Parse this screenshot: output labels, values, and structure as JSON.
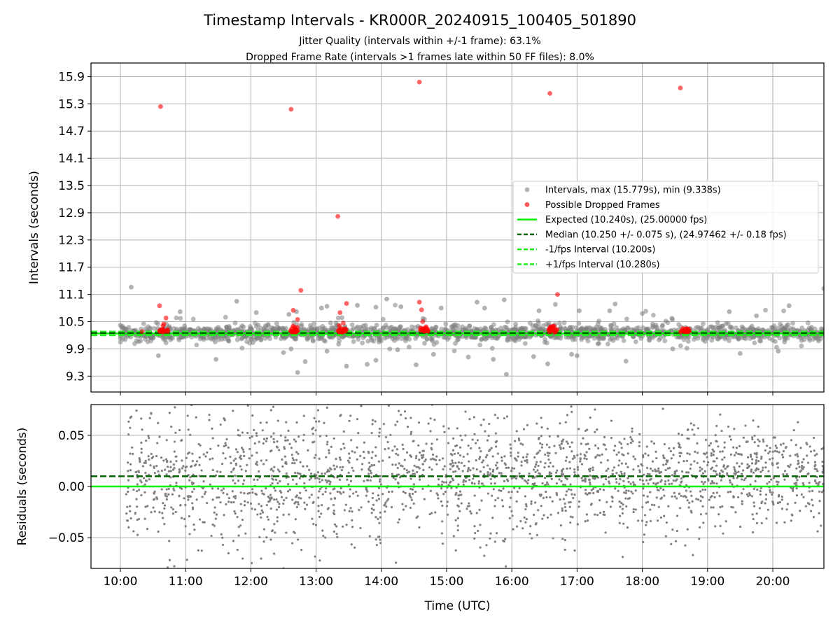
{
  "title": "Timestamp Intervals - KR000R_20240915_100405_501890",
  "subtitle_1": "Jitter Quality (intervals within +/-1 frame): 63.1%",
  "subtitle_2": "Dropped Frame Rate (intervals >1 frames late within 50 FF files): 8.0%",
  "colors": {
    "intervals": "#808080",
    "dropped": "#ff0000",
    "expected": "#00ee00",
    "median": "#006400",
    "fps_bounds": "#22ee22",
    "grid": "#b0b0b0"
  },
  "chart_data": [
    {
      "type": "scatter",
      "panel": "top",
      "ylabel": "Intervals (seconds)",
      "xlim": [
        "09:33",
        "20:47"
      ],
      "ylim": [
        8.95,
        16.2
      ],
      "yticks": [
        "9.3",
        "9.9",
        "10.5",
        "11.1",
        "11.7",
        "12.3",
        "12.9",
        "13.5",
        "14.1",
        "14.7",
        "15.3",
        "15.9"
      ],
      "grid": true,
      "legend_position": "center-right",
      "legend": [
        "Intervals, max (15.779s), min (9.338s)",
        "Possible Dropped Frames",
        "Expected (10.240s), (25.00000 fps)",
        "Median (10.250 +/- 0.075 s), (24.97462 +/- 0.18 fps)",
        "-1/fps Interval (10.200s)",
        "+1/fps Interval (10.280s)"
      ],
      "reference_lines": {
        "expected": 10.24,
        "median": 10.25,
        "minus_1_fps": 10.2,
        "plus_1_fps": 10.28
      },
      "series": [
        {
          "name": "Intervals, max (15.779s), min (9.338s)",
          "style": "gray scatter",
          "points": [
            [
              "10:10",
              11.26
            ],
            [
              "10:55",
              10.72
            ],
            [
              "11:47",
              10.95
            ],
            [
              "12:05",
              10.7
            ],
            [
              "12:35",
              10.66
            ],
            [
              "12:42",
              10.72
            ],
            [
              "13:05",
              10.8
            ],
            [
              "13:10",
              10.84
            ],
            [
              "13:38",
              10.86
            ],
            [
              "13:55",
              10.82
            ],
            [
              "14:05",
              11.0
            ],
            [
              "14:18",
              10.83
            ],
            [
              "14:55",
              10.8
            ],
            [
              "15:28",
              10.93
            ],
            [
              "15:35",
              10.8
            ],
            [
              "15:53",
              10.98
            ],
            [
              "16:25",
              10.74
            ],
            [
              "16:40",
              10.88
            ],
            [
              "17:02",
              10.74
            ],
            [
              "17:30",
              10.74
            ],
            [
              "17:35",
              10.89
            ],
            [
              "18:00",
              10.68
            ],
            [
              "19:20",
              10.72
            ],
            [
              "19:45",
              10.63
            ],
            [
              "20:15",
              10.85
            ],
            [
              "20:47",
              11.23
            ],
            [
              "10:00",
              10.42
            ],
            [
              "10:35",
              9.75
            ],
            [
              "11:28",
              9.67
            ],
            [
              "12:30",
              9.82
            ],
            [
              "12:37",
              9.9
            ],
            [
              "12:43",
              9.38
            ],
            [
              "12:50",
              9.62
            ],
            [
              "13:10",
              9.85
            ],
            [
              "13:28",
              9.52
            ],
            [
              "13:47",
              9.56
            ],
            [
              "13:55",
              9.65
            ],
            [
              "14:15",
              9.88
            ],
            [
              "14:32",
              9.55
            ],
            [
              "14:48",
              9.78
            ],
            [
              "15:20",
              9.72
            ],
            [
              "15:43",
              9.67
            ],
            [
              "15:55",
              9.34
            ],
            [
              "16:20",
              9.73
            ],
            [
              "16:33",
              9.57
            ],
            [
              "16:55",
              9.78
            ],
            [
              "17:00",
              9.75
            ],
            [
              "17:45",
              9.63
            ],
            [
              "18:28",
              9.9
            ],
            [
              "19:30",
              9.8
            ],
            [
              "20:05",
              9.85
            ]
          ]
        },
        {
          "name": "Possible Dropped Frames",
          "style": "red scatter",
          "points": [
            [
              "10:20",
              10.28
            ],
            [
              "10:37",
              15.24
            ],
            [
              "10:36",
              10.85
            ],
            [
              "10:38",
              10.3
            ],
            [
              "10:40",
              10.45
            ],
            [
              "10:42",
              10.58
            ],
            [
              "12:37",
              15.18
            ],
            [
              "12:39",
              10.75
            ],
            [
              "12:40",
              10.38
            ],
            [
              "12:43",
              10.55
            ],
            [
              "12:46",
              11.19
            ],
            [
              "13:20",
              12.82
            ],
            [
              "13:22",
              10.7
            ],
            [
              "13:25",
              10.47
            ],
            [
              "13:28",
              10.9
            ],
            [
              "14:35",
              15.78
            ],
            [
              "14:35",
              10.93
            ],
            [
              "14:37",
              10.76
            ],
            [
              "14:38",
              10.5
            ],
            [
              "14:41",
              10.35
            ],
            [
              "16:35",
              15.53
            ],
            [
              "16:39",
              10.4
            ],
            [
              "16:42",
              11.1
            ],
            [
              "18:35",
              15.65
            ],
            [
              "18:38",
              10.3
            ],
            [
              "18:42",
              10.28
            ]
          ]
        }
      ]
    },
    {
      "type": "scatter",
      "panel": "bottom",
      "ylabel": "Residuals (seconds)",
      "xlabel": "Time (UTC)",
      "xlim": [
        "09:33",
        "20:47"
      ],
      "ylim": [
        -0.08,
        0.08
      ],
      "yticks": [
        "−0.05",
        "0.00",
        "0.05"
      ],
      "xticks": [
        "10:00",
        "11:00",
        "12:00",
        "13:00",
        "14:00",
        "15:00",
        "16:00",
        "17:00",
        "18:00",
        "19:00",
        "20:00"
      ],
      "grid": true,
      "reference_lines": {
        "expected": 0.0,
        "median": 0.01
      },
      "series": [
        {
          "name": "Residuals",
          "style": "gray small dots",
          "x_range": [
            "10:05",
            "20:47"
          ],
          "y_range": [
            -0.08,
            0.08
          ],
          "center": 0.01
        }
      ]
    }
  ]
}
